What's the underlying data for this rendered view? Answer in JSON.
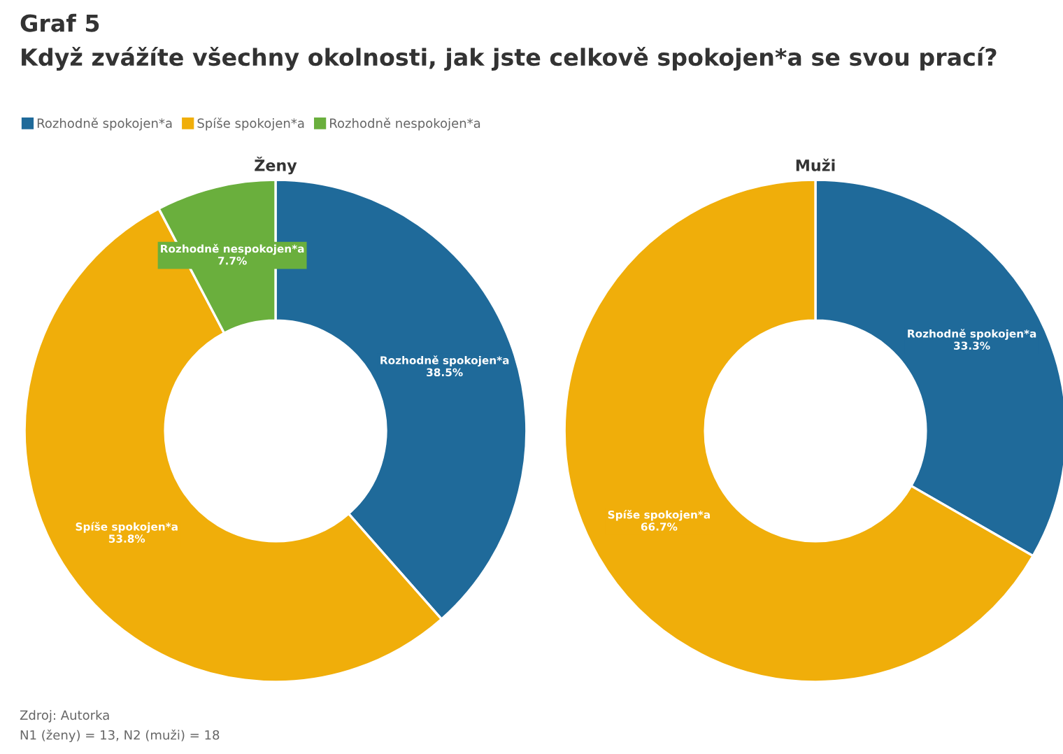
{
  "chart_data": [
    {
      "type": "donut",
      "title": "Ženy",
      "annotations": [
        "Graf 5",
        "Když zvážíte všechny okolnosti, jak jste celkově spokojen*a se svou prací?",
        "Zdroj: Autorka",
        "N1 (ženy) = 13, N2 (muži) = 18"
      ],
      "categories": [
        "Rozhodně spokojen*a",
        "Spíše spokojen*a",
        "Rozhodně nespokojen*a"
      ],
      "values": [
        38.5,
        53.8,
        7.7
      ],
      "value_labels": [
        "38.5%",
        "53.8%",
        "7.7%"
      ],
      "colors": [
        "#1f6a9a",
        "#f0ae0a",
        "#6aaf3d"
      ],
      "legend": "top"
    },
    {
      "type": "donut",
      "title": "Muži",
      "categories": [
        "Rozhodně spokojen*a",
        "Spíše spokojen*a"
      ],
      "values": [
        33.3,
        66.7
      ],
      "value_labels": [
        "33.3%",
        "66.7%"
      ],
      "colors": [
        "#1f6a9a",
        "#f0ae0a"
      ]
    }
  ]
}
